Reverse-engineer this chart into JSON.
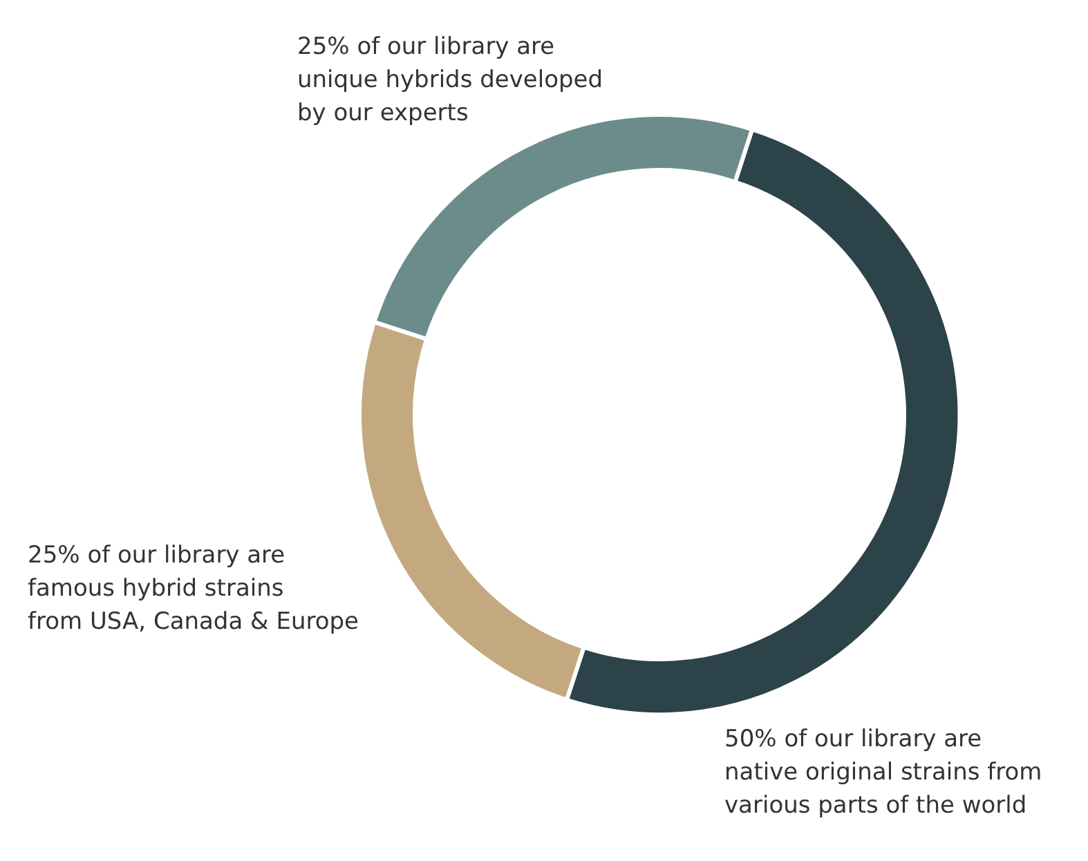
{
  "chart_data": {
    "type": "donut",
    "categories": [
      "50% of our library are\nnative original strains from\nvarious parts of the world",
      "25% of our library are\nfamous hybrid strains\nfrom USA, Canada & Europe",
      "25% of our library are\nunique hybrids developed\nby our experts"
    ],
    "values": [
      50,
      25,
      25
    ],
    "colors": [
      "#2c4349",
      "#c4a980",
      "#6c8c8b"
    ],
    "legend": false
  }
}
